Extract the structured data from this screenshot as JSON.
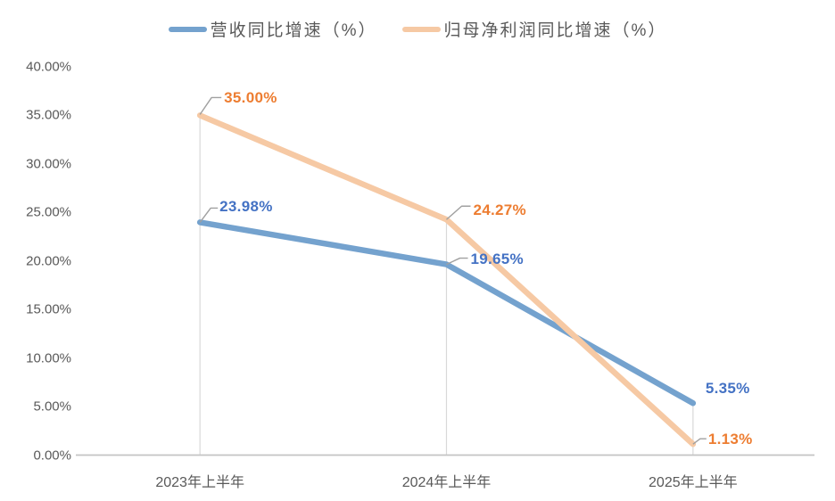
{
  "chart_data": {
    "type": "line",
    "title": "",
    "categories": [
      "2023年上半年",
      "2024年上半年",
      "2025年上半年"
    ],
    "series": [
      {
        "name": "营收同比增速（%）",
        "values": [
          23.98,
          19.65,
          5.35
        ],
        "data_labels": [
          "23.98%",
          "19.65%",
          "5.35%"
        ],
        "line_color": "#74A2CE",
        "label_color": "#4472C4"
      },
      {
        "name": "归母净利润同比增速（%）",
        "values": [
          35.0,
          24.27,
          1.13
        ],
        "data_labels": [
          "35.00%",
          "24.27%",
          "1.13%"
        ],
        "line_color": "#F6C9A4",
        "label_color": "#ED7D31"
      }
    ],
    "y_axis": {
      "min": 0,
      "max": 40,
      "step": 5
    },
    "y_ticks": [
      {
        "value": 40,
        "label": "40.00%"
      },
      {
        "value": 35,
        "label": "35.00%"
      },
      {
        "value": 30,
        "label": "30.00%"
      },
      {
        "value": 25,
        "label": "25.00%"
      },
      {
        "value": 20,
        "label": "20.00%"
      },
      {
        "value": 15,
        "label": "15.00%"
      },
      {
        "value": 10,
        "label": "10.00%"
      },
      {
        "value": 5,
        "label": "5.00%"
      },
      {
        "value": 0,
        "label": "0.00%"
      }
    ],
    "legend_position": "top",
    "grid": "vertical-drop-lines-only"
  },
  "colors": {
    "background": "#FFFFFF",
    "axis_line": "#C4C4C4",
    "drop_line": "#D9D9D9",
    "leader_line": "#A0A0A0",
    "tick_text": "#595959"
  }
}
